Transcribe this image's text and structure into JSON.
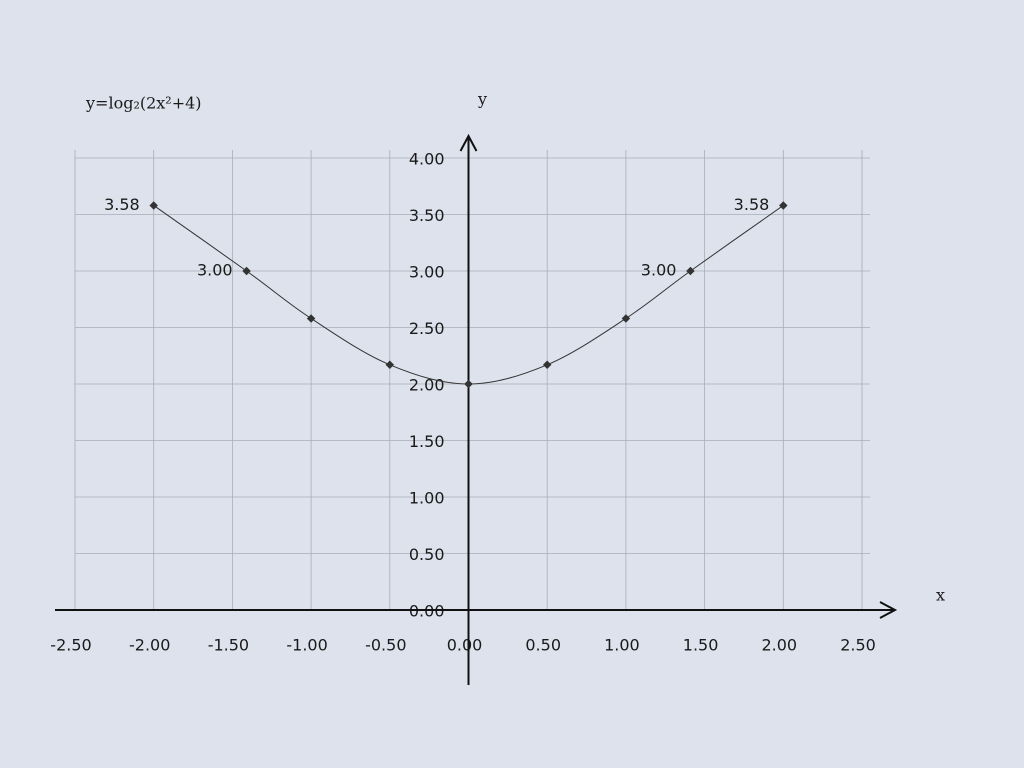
{
  "chart_data": {
    "type": "line",
    "title": "y=log₂(2x²+4)",
    "x_label": "x",
    "y_label": "y",
    "x": [
      -2,
      -1.41,
      -1,
      -0.5,
      0,
      0.5,
      1,
      1.41,
      2
    ],
    "series": [
      {
        "name": "y=log₂(2x²+4)",
        "color": "#333333",
        "values": [
          3.58,
          3.0,
          2.58,
          2.17,
          2.0,
          2.17,
          2.58,
          3.0,
          3.58
        ],
        "value_labels": [
          "3.58",
          "3.00",
          null,
          null,
          null,
          null,
          null,
          "3.00",
          "3.58"
        ]
      }
    ],
    "xlim": [
      -2.5,
      2.5
    ],
    "xticks": [
      {
        "value": -2.5,
        "label": "-2.50"
      },
      {
        "value": -2,
        "label": "-2.00"
      },
      {
        "value": -1.5,
        "label": "-1.50"
      },
      {
        "value": -1,
        "label": "-1.00"
      },
      {
        "value": -0.5,
        "label": "-0.50"
      },
      {
        "value": 0,
        "label": "0.00"
      },
      {
        "value": 0.5,
        "label": "0.50"
      },
      {
        "value": 1,
        "label": "1.00"
      },
      {
        "value": 1.5,
        "label": "1.50"
      },
      {
        "value": 2,
        "label": "2.00"
      },
      {
        "value": 2.5,
        "label": "2.50"
      }
    ],
    "ylim": [
      0,
      4
    ],
    "yticks": [
      {
        "value": 0,
        "label": "0.00"
      },
      {
        "value": 0.5,
        "label": "0.50"
      },
      {
        "value": 1,
        "label": "1.00"
      },
      {
        "value": 1.5,
        "label": "1.50"
      },
      {
        "value": 2,
        "label": "2.00"
      },
      {
        "value": 2.5,
        "label": "2.50"
      },
      {
        "value": 3,
        "label": "3.00"
      },
      {
        "value": 3.5,
        "label": "3.50"
      },
      {
        "value": 4,
        "label": "4.00"
      }
    ],
    "grid": true
  }
}
